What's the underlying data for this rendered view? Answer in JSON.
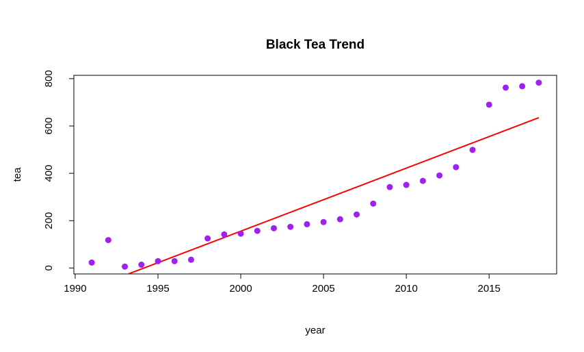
{
  "chart_data": {
    "type": "scatter",
    "title": "Black Tea Trend",
    "x_label": "year",
    "y_label": "tea",
    "x": [
      1991,
      1992,
      1993,
      1994,
      1995,
      1996,
      1997,
      1998,
      1999,
      2000,
      2001,
      2002,
      2003,
      2004,
      2005,
      2006,
      2007,
      2008,
      2009,
      2010,
      2011,
      2012,
      2013,
      2014,
      2015,
      2016,
      2017,
      2018
    ],
    "series": [
      {
        "name": "tea",
        "color": "#a020f0",
        "values": [
          23,
          118,
          6,
          14,
          29,
          29,
          35,
          125,
          142,
          145,
          157,
          168,
          174,
          185,
          194,
          206,
          226,
          272,
          342,
          351,
          368,
          391,
          426,
          499,
          690,
          762,
          768,
          783
        ]
      }
    ],
    "fit_line": {
      "color": "#ff0000",
      "x": [
        1991,
        2018
      ],
      "y": [
        -84,
        635
      ]
    },
    "xlim": [
      1989.92,
      2019.08
    ],
    "ylim": [
      -25,
      814
    ],
    "xticks": [
      1990,
      1995,
      2000,
      2005,
      2010,
      2015
    ],
    "yticks": [
      0,
      200,
      400,
      600,
      800
    ]
  }
}
